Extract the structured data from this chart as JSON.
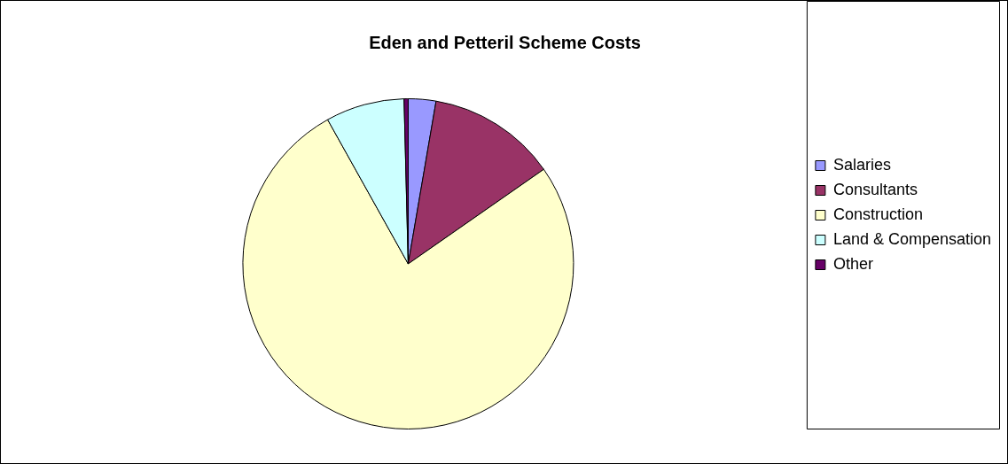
{
  "chart_data": {
    "type": "pie",
    "title": "Eden and Petteril Scheme Costs",
    "categories": [
      "Salaries",
      "Consultants",
      "Construction",
      "Land & Compensation",
      "Other"
    ],
    "values": [
      2.7,
      12.6,
      76.6,
      7.7,
      0.4
    ],
    "colors": [
      "#9999ff",
      "#993366",
      "#ffffcc",
      "#ccffff",
      "#660066"
    ],
    "legend": "right"
  }
}
